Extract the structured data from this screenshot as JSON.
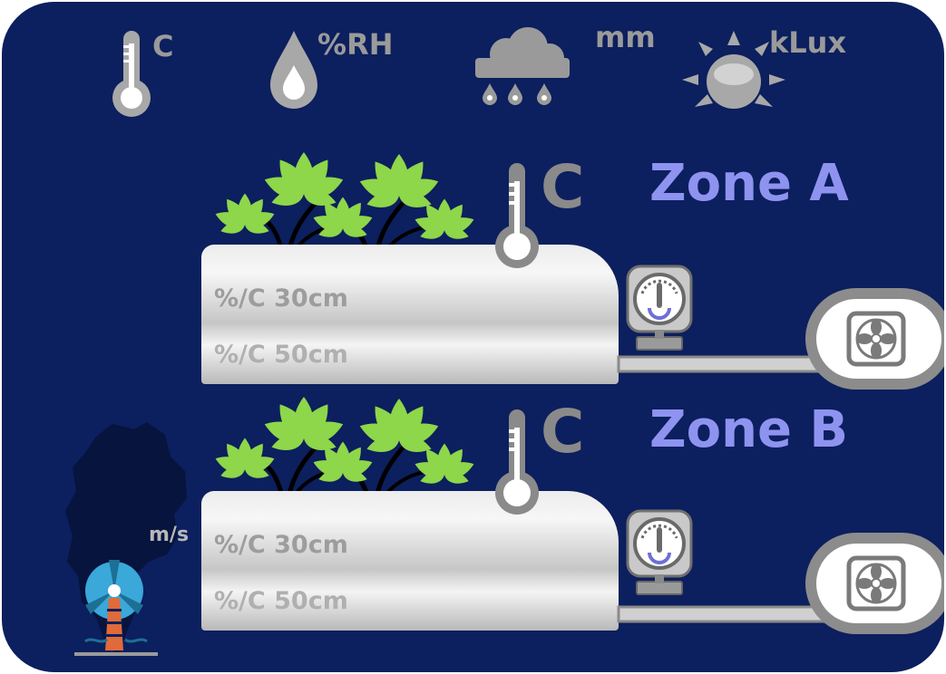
{
  "weather": {
    "temp_unit": "C",
    "humidity_unit": "%RH",
    "rain_unit": "mm",
    "light_unit": "kLux",
    "wind_unit": "m/s"
  },
  "zones": [
    {
      "name": "Zone A",
      "temp_unit": "C",
      "sensor_shallow": "%/C 30cm",
      "sensor_deep": "%/C 50cm"
    },
    {
      "name": "Zone B",
      "temp_unit": "C",
      "sensor_shallow": "%/C 30cm",
      "sensor_deep": "%/C 50cm"
    }
  ],
  "icons": [
    "thermometer-icon",
    "raindrop-icon",
    "rain-cloud-icon",
    "sun-icon",
    "plant-icon",
    "pressure-gauge-icon",
    "fan-icon",
    "wind-turbine-icon",
    "region-map-icon"
  ],
  "colors": {
    "background": "#0c1f5e",
    "zone_label": "#8f93f0",
    "leaf": "#8ed64a",
    "icon_gray": "#8a8a8a",
    "turbine_blue": "#3aa8d8",
    "turbine_orange": "#e06a3a"
  }
}
